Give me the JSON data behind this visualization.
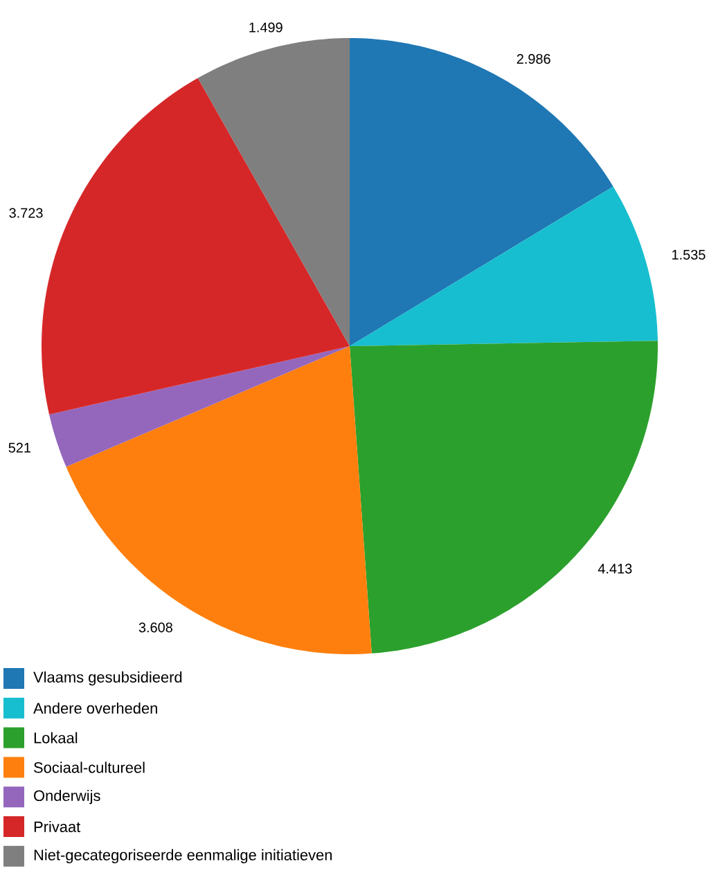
{
  "chart_data": {
    "type": "pie",
    "categories": [
      "Vlaams gesubsidieerd",
      "Andere overheden",
      "Lokaal",
      "Sociaal-cultureel",
      "Onderwijs",
      "Privaat",
      "Niet-gecategoriseerde eenmalige initiatieven"
    ],
    "values": [
      2986,
      1535,
      4413,
      3608,
      521,
      3723,
      1499
    ],
    "value_labels": [
      "2.986",
      "1.535",
      "4.413",
      "3.608",
      "521",
      "3.723",
      "1.499"
    ],
    "colors": [
      "#1f77b4",
      "#17becf",
      "#2ca02c",
      "#ff7f0e",
      "#9467bd",
      "#d62728",
      "#7f7f7f"
    ],
    "legend": "bottom left"
  }
}
